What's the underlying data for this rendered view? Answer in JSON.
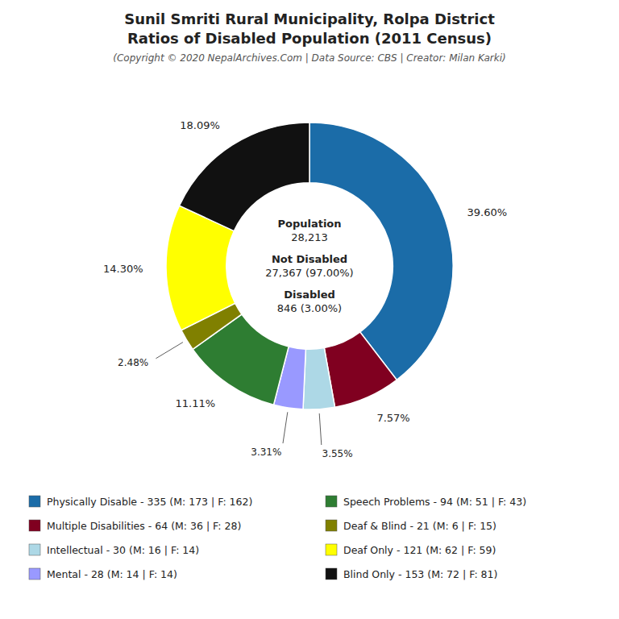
{
  "chart_data": {
    "type": "pie",
    "title": [
      "Sunil Smriti Rural Municipality, Rolpa District",
      "Ratios of Disabled Population (2011 Census)"
    ],
    "subtitle": "(Copyright © 2020 NepalArchives.Com | Data Source: CBS | Creator: Milan Karki)",
    "categories": [
      "Physically Disable - 335 (M: 173 | F: 162)",
      "Multiple Disabilities - 64 (M: 36 | F: 28)",
      "Intellectual - 30 (M: 16 | F: 14)",
      "Mental - 28 (M: 14 | F: 14)",
      "Speech Problems - 94 (M: 51 | F: 43)",
      "Deaf & Blind - 21 (M: 6 | F: 15)",
      "Deaf Only - 121 (M: 62 | F: 59)",
      "Blind Only - 153 (M: 72 | F: 81)"
    ],
    "values": [
      39.6,
      7.57,
      3.55,
      3.31,
      11.11,
      2.48,
      14.3,
      18.09
    ],
    "value_labels": [
      "39.60%",
      "7.57%",
      "3.55%",
      "3.31%",
      "11.11%",
      "2.48%",
      "14.30%",
      "18.09%"
    ],
    "colors": [
      "#1b6ca8",
      "#800020",
      "#add8e6",
      "#9999ff",
      "#2e7d32",
      "#808000",
      "#ffff00",
      "#111111"
    ],
    "data_labels": true,
    "legend": "bottom",
    "annotations": [
      "Population",
      "28,213",
      "Not Disabled",
      "27,367 (97.00%)",
      "Disabled",
      "846 (3.00%)"
    ]
  }
}
